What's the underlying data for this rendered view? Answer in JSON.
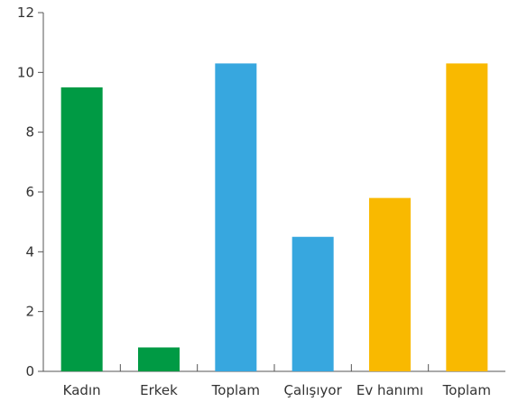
{
  "chart_data": {
    "type": "bar",
    "title": "",
    "xlabel": "",
    "ylabel": "",
    "categories": [
      "Kadın",
      "Erkek",
      "Toplam",
      "Çalışıyor",
      "Ev hanımı",
      "Toplam"
    ],
    "values": [
      9.5,
      0.8,
      10.3,
      4.5,
      5.8,
      10.3
    ],
    "colors": [
      "#009a44",
      "#009a44",
      "#37a7df",
      "#37a7df",
      "#f9b900",
      "#f9b900"
    ],
    "ylim": [
      0,
      12
    ],
    "yticks": [
      0,
      2,
      4,
      6,
      8,
      10,
      12
    ],
    "ytick_labels": [
      "0",
      "2",
      "4",
      "6",
      "8",
      "10",
      "12"
    ],
    "grid": false,
    "legend": "none"
  }
}
